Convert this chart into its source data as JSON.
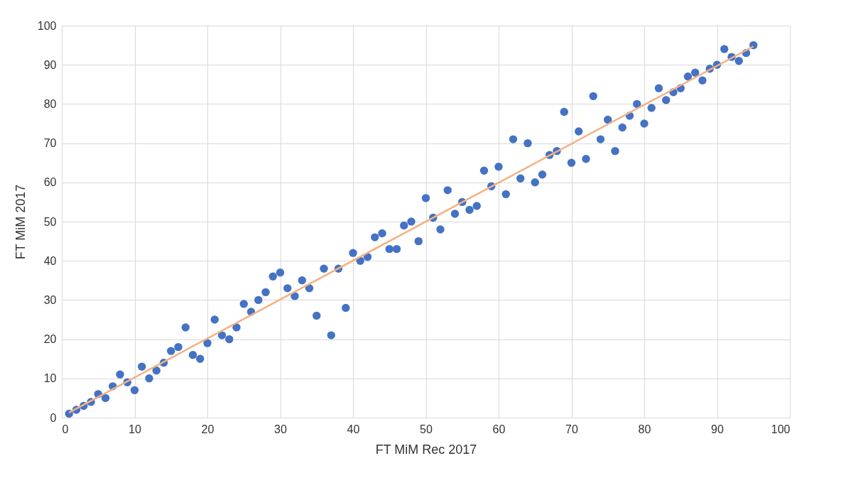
{
  "chart_data": {
    "type": "scatter",
    "xlabel": "FT MiM Rec 2017",
    "ylabel": "FT MiM 2017",
    "x": [
      1,
      2,
      3,
      4,
      5,
      6,
      7,
      8,
      9,
      10,
      11,
      12,
      13,
      14,
      15,
      16,
      17,
      18,
      19,
      20,
      21,
      22,
      23,
      24,
      25,
      26,
      27,
      28,
      29,
      30,
      31,
      32,
      33,
      34,
      35,
      36,
      37,
      38,
      39,
      40,
      41,
      42,
      43,
      44,
      45,
      46,
      47,
      48,
      49,
      50,
      51,
      52,
      53,
      54,
      55,
      56,
      57,
      58,
      59,
      60,
      61,
      62,
      63,
      64,
      65,
      66,
      67,
      68,
      69,
      70,
      71,
      72,
      73,
      74,
      75,
      76,
      77,
      78,
      79,
      80,
      81,
      82,
      83,
      84,
      85,
      86,
      87,
      88,
      89,
      90,
      91,
      92,
      93,
      94,
      95
    ],
    "series": [
      {
        "color": "#4472c4",
        "marker": "circle",
        "values": [
          1,
          2,
          3,
          4,
          6,
          5,
          8,
          11,
          9,
          7,
          13,
          10,
          12,
          14,
          17,
          18,
          23,
          16,
          15,
          19,
          25,
          21,
          20,
          23,
          29,
          27,
          30,
          32,
          36,
          37,
          33,
          31,
          35,
          33,
          26,
          38,
          21,
          38,
          28,
          42,
          40,
          41,
          46,
          47,
          43,
          43,
          49,
          50,
          45,
          56,
          51,
          48,
          58,
          52,
          55,
          53,
          54,
          63,
          59,
          64,
          57,
          71,
          61,
          70,
          60,
          62,
          67,
          68,
          78,
          65,
          73,
          66,
          82,
          71,
          76,
          68,
          74,
          77,
          80,
          75,
          79,
          84,
          81,
          83,
          84,
          87,
          88,
          86,
          89,
          90,
          94,
          92,
          91,
          93,
          95
        ]
      },
      {
        "type": "line",
        "color": "#f4b183",
        "marker": "none",
        "line_style": "solid",
        "x": [
          1,
          95
        ],
        "values": [
          1.3,
          94.7
        ]
      }
    ],
    "xlim": [
      0,
      100
    ],
    "xticks": [
      0,
      10,
      20,
      30,
      40,
      50,
      60,
      70,
      80,
      90,
      100
    ],
    "ylim": [
      0,
      100
    ],
    "yticks": [
      0,
      10,
      20,
      30,
      40,
      50,
      60,
      70,
      80,
      90,
      100
    ],
    "grid": true
  }
}
